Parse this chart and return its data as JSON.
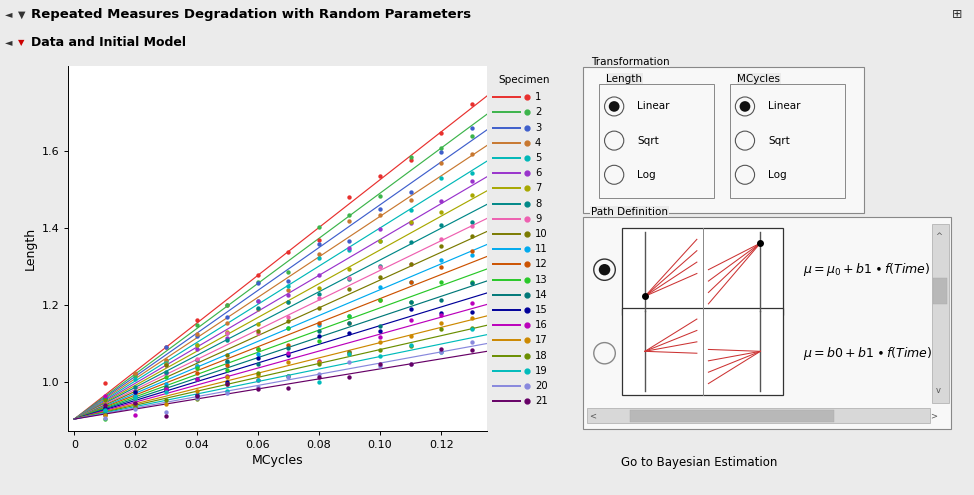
{
  "title": "Repeated Measures Degradation with Random Parameters",
  "subtitle": "Data and Initial Model",
  "xlabel": "MCycles",
  "ylabel": "Length",
  "xlim": [
    -0.002,
    0.135
  ],
  "ylim": [
    0.875,
    1.82
  ],
  "xticks": [
    0,
    0.02,
    0.04,
    0.06,
    0.08,
    0.1,
    0.12
  ],
  "yticks": [
    1.0,
    1.2,
    1.4,
    1.6
  ],
  "specimen_colors": [
    "#e8302e",
    "#3cb44b",
    "#3f5fcc",
    "#c87830",
    "#00b8b8",
    "#9933cc",
    "#a8a800",
    "#008888",
    "#ee60b0",
    "#7a7a00",
    "#00aaee",
    "#cc5200",
    "#28c828",
    "#007878",
    "#000099",
    "#bb00bb",
    "#cc8800",
    "#6a8e00",
    "#00bbbb",
    "#8888dd",
    "#660066"
  ],
  "n_specimens": 21,
  "intercept": 0.905,
  "slopes": [
    6.2,
    5.85,
    5.55,
    5.25,
    4.95,
    4.65,
    4.38,
    4.12,
    3.85,
    3.6,
    3.35,
    3.12,
    2.88,
    2.65,
    2.42,
    2.2,
    1.98,
    1.8,
    1.62,
    1.45,
    1.3
  ],
  "x_data_points": [
    0.01,
    0.02,
    0.03,
    0.04,
    0.05,
    0.06,
    0.07,
    0.08,
    0.09,
    0.1,
    0.11,
    0.12,
    0.13
  ],
  "noise_scale": 0.018,
  "bg_color": "#ebebeb",
  "plot_bg_color": "#ffffff",
  "title_bg": "#d4d4e8",
  "subtitle_bg": "#dcdcec"
}
